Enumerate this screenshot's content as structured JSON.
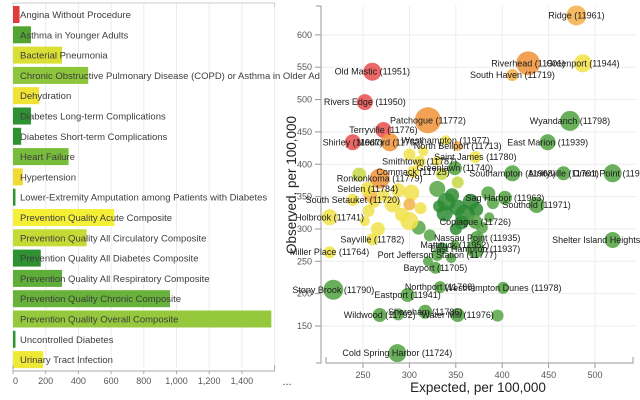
{
  "palette": {
    "red": "#e85353",
    "orange": "#f0953e",
    "light_orange": "#f4b14c",
    "yellow": "#f1e24b",
    "yellow_green": "#c6d845",
    "green": "#55a546",
    "dark_green": "#2e8b34"
  },
  "chart_data": [
    {
      "type": "bar",
      "title": "",
      "xlabel": "",
      "ylabel": "",
      "x_tick_values": [
        0,
        200,
        400,
        600,
        800,
        1000,
        1200,
        1400
      ],
      "x_tick_labels": [
        "0",
        "200",
        "400",
        "600",
        "800",
        "1,000",
        "1,200",
        "1,400"
      ],
      "x_max": 1600,
      "overflow_indicator": "...",
      "rows": [
        {
          "label": "Angina Without Procedure",
          "value": 40,
          "color": "#e03c3c"
        },
        {
          "label": "Asthma in Younger Adults",
          "value": 110,
          "color": "#53a433"
        },
        {
          "label": "Bacterial Pneumonia",
          "value": 300,
          "color": "#d9e033"
        },
        {
          "label": "Chronic Obstructive Pulmonary Disease (COPD) or Asthma in Older Ad",
          "value": 460,
          "color": "#8dc63b"
        },
        {
          "label": "Dehydration",
          "value": 160,
          "color": "#f0e335"
        },
        {
          "label": "Diabetes Long-term Complications",
          "value": 110,
          "color": "#2e9232"
        },
        {
          "label": "Diabetes Short-term Complications",
          "value": 50,
          "color": "#2e9232"
        },
        {
          "label": "Heart Failure",
          "value": 340,
          "color": "#78bc3c"
        },
        {
          "label": "Hypertension",
          "value": 60,
          "color": "#f2da36"
        },
        {
          "label": "Lower-Extremity Amputation among Patients with Diabetes",
          "value": 15,
          "color": "#2e9232"
        },
        {
          "label": "Prevention Quality Acute Composite",
          "value": 620,
          "color": "#f5ef36"
        },
        {
          "label": "Prevention Quality All Circulatory Composite",
          "value": 450,
          "color": "#c5da35"
        },
        {
          "label": "Prevention Quality All Diabetes Composite",
          "value": 170,
          "color": "#2e9232"
        },
        {
          "label": "Prevention Quality All Respiratory Composite",
          "value": 300,
          "color": "#5fae3a"
        },
        {
          "label": "Prevention Quality Chronic Composite",
          "value": 960,
          "color": "#67b23a"
        },
        {
          "label": "Prevention Quality Overall Composite",
          "value": 1580,
          "color": "#95c83c"
        },
        {
          "label": "Uncontrolled Diabetes",
          "value": 15,
          "color": "#2e9232"
        },
        {
          "label": "Urinary Tract Infection",
          "value": 185,
          "color": "#eee836"
        }
      ]
    },
    {
      "type": "scatter",
      "title": "",
      "xlabel": "Expected, per 100,000",
      "ylabel": "Observed, per 100,000",
      "x_ticks": [
        250,
        300,
        350,
        400,
        450,
        500
      ],
      "y_ticks": [
        150,
        200,
        250,
        300,
        350,
        400,
        450,
        500,
        550,
        600
      ],
      "x_range": [
        210,
        545
      ],
      "y_range": [
        95,
        645
      ],
      "grid": true,
      "points": [
        {
          "name": "Ridge",
          "zip": "11961",
          "expected": 480,
          "observed": 630,
          "r": 10,
          "color": "light_orange"
        },
        {
          "name": "Greenport",
          "zip": "11944",
          "expected": 487,
          "observed": 556,
          "r": 9,
          "color": "yellow"
        },
        {
          "name": "Riverhead",
          "zip": "11901",
          "expected": 428,
          "observed": 556,
          "r": 12,
          "color": "orange"
        },
        {
          "name": "South Haven",
          "zip": "11719",
          "expected": 411,
          "observed": 538,
          "r": 6,
          "color": "light_orange"
        },
        {
          "name": "Old Mastic",
          "zip": "11951",
          "expected": 260,
          "observed": 543,
          "r": 9,
          "color": "red"
        },
        {
          "name": "Rivers Edge",
          "zip": "11950",
          "expected": 252,
          "observed": 496,
          "r": 8,
          "color": "red"
        },
        {
          "name": "Patchogue",
          "zip": "11772",
          "expected": 320,
          "observed": 468,
          "r": 13,
          "color": "orange"
        },
        {
          "name": "Terryville",
          "zip": "11776",
          "expected": 272,
          "observed": 453,
          "r": 8,
          "color": "red"
        },
        {
          "name": "Wyandanch",
          "zip": "11798",
          "expected": 473,
          "observed": 467,
          "r": 10,
          "color": "green"
        },
        {
          "name": "Shirley",
          "zip": "11967",
          "expected": 239,
          "observed": 434,
          "r": 8,
          "color": "red"
        },
        {
          "name": "Medford",
          "zip": "11763",
          "expected": 279,
          "observed": 434,
          "r": 9,
          "color": "orange"
        },
        {
          "name": "Westhampton",
          "zip": "11977",
          "expected": 339,
          "observed": 437,
          "r": 5,
          "color": "yellow"
        },
        {
          "name": "North Bellport",
          "zip": "11713",
          "expected": 352,
          "observed": 428,
          "r": 5,
          "color": "light_orange"
        },
        {
          "name": "East Marion",
          "zip": "11939",
          "expected": 449,
          "observed": 434,
          "r": 8,
          "color": "green"
        },
        {
          "name": "Saint James",
          "zip": "11780",
          "expected": 371,
          "observed": 411,
          "r": 6,
          "color": "yellow"
        },
        {
          "name": "Smithtown",
          "zip": "11787",
          "expected": 311,
          "observed": 404,
          "r": 6,
          "color": "yellow"
        },
        {
          "name": "Ronkonkoma",
          "zip": "11779",
          "expected": 268,
          "observed": 378,
          "r": 10,
          "color": "orange"
        },
        {
          "name": "Commack",
          "zip": "11725",
          "expected": 304,
          "observed": 388,
          "r": 6,
          "color": "yellow"
        },
        {
          "name": "Greenlawn",
          "zip": "11740",
          "expected": 349,
          "observed": 394,
          "r": 7,
          "color": "green"
        },
        {
          "name": "Southampton",
          "zip": "11968",
          "expected": 411,
          "observed": 386,
          "r": 8,
          "color": "green"
        },
        {
          "name": "Amityville",
          "zip": "11701",
          "expected": 466,
          "observed": 386,
          "r": 7,
          "color": "green"
        },
        {
          "name": "Orient Point",
          "zip": "11957",
          "expected": 519,
          "observed": 386,
          "r": 9,
          "color": "green"
        },
        {
          "name": "Selden",
          "zip": "11784",
          "expected": 255,
          "observed": 362,
          "r": 7,
          "color": "yellow"
        },
        {
          "name": "South Setauket",
          "zip": "11720",
          "expected": 239,
          "observed": 345,
          "r": 6,
          "color": "yellow"
        },
        {
          "name": "Holbrook",
          "zip": "11741",
          "expected": 214,
          "observed": 318,
          "r": 8,
          "color": "yellow"
        },
        {
          "name": "Southold",
          "zip": "11971",
          "expected": 437,
          "observed": 337,
          "r": 8,
          "color": "green"
        },
        {
          "name": "Sag Harbor",
          "zip": "11963",
          "expected": 403,
          "observed": 348,
          "r": 7,
          "color": "green"
        },
        {
          "name": "Sayville",
          "zip": "11782",
          "expected": 260,
          "observed": 284,
          "r": 6,
          "color": "yellow"
        },
        {
          "name": "Copiague",
          "zip": "11726",
          "expected": 371,
          "observed": 311,
          "r": 7,
          "color": "green"
        },
        {
          "name": "Shelter Island Heights",
          "zip": "11965",
          "expected": 519,
          "observed": 283,
          "r": 8,
          "color": "green"
        },
        {
          "name": "Nassau Point",
          "zip": "11935",
          "expected": 373,
          "observed": 286,
          "r": 7,
          "color": "green"
        },
        {
          "name": "East Hampton",
          "zip": "11937",
          "expected": 371,
          "observed": 269,
          "r": 9,
          "color": "green"
        },
        {
          "name": "Mattituck",
          "zip": "11952",
          "expected": 349,
          "observed": 275,
          "r": 5,
          "color": "green"
        },
        {
          "name": "Port Jefferson Station",
          "zip": "11777",
          "expected": 330,
          "observed": 260,
          "r": 6,
          "color": "green"
        },
        {
          "name": "Bayport",
          "zip": "11705",
          "expected": 328,
          "observed": 240,
          "r": 6,
          "color": "green"
        },
        {
          "name": "Miller Place",
          "zip": "11764",
          "expected": 214,
          "observed": 264,
          "r": 6,
          "color": "yellow"
        },
        {
          "name": "Northport",
          "zip": "11768",
          "expected": 333,
          "observed": 210,
          "r": 6,
          "color": "green"
        },
        {
          "name": "Eastport",
          "zip": "11941",
          "expected": 298,
          "observed": 198,
          "r": 7,
          "color": "green"
        },
        {
          "name": "Westhampton Dunes",
          "zip": "11978",
          "expected": 401,
          "observed": 209,
          "r": 6,
          "color": "green"
        },
        {
          "name": "Stony Brook",
          "zip": "11790",
          "expected": 218,
          "observed": 206,
          "r": 10,
          "color": "green"
        },
        {
          "name": "Wildwood",
          "zip": "11792",
          "expected": 268,
          "observed": 167,
          "r": 7,
          "color": "green"
        },
        {
          "name": "Shoreham",
          "zip": "11786",
          "expected": 317,
          "observed": 172,
          "r": 7,
          "color": "green"
        },
        {
          "name": "Water Mill",
          "zip": "11976",
          "expected": 352,
          "observed": 167,
          "r": 7,
          "color": "green"
        },
        {
          "name": "Cold Spring Harbor",
          "zip": "11724",
          "expected": 287,
          "observed": 108,
          "r": 9,
          "color": "green"
        }
      ],
      "background_points": [
        [
          340,
          342,
          9,
          "dark_green"
        ],
        [
          352,
          333,
          8,
          "dark_green"
        ],
        [
          360,
          322,
          10,
          "dark_green"
        ],
        [
          346,
          352,
          7,
          "dark_green"
        ],
        [
          366,
          342,
          8,
          "dark_green"
        ],
        [
          372,
          330,
          7,
          "dark_green"
        ],
        [
          356,
          310,
          7,
          "dark_green"
        ],
        [
          338,
          324,
          8,
          "dark_green"
        ],
        [
          350,
          300,
          6,
          "dark_green"
        ],
        [
          332,
          335,
          6,
          "dark_green"
        ],
        [
          335,
          270,
          6,
          "dark_green"
        ],
        [
          385,
          355,
          7,
          "green"
        ],
        [
          390,
          340,
          6,
          "green"
        ],
        [
          330,
          362,
          8,
          "green"
        ],
        [
          378,
          302,
          6,
          "green"
        ],
        [
          386,
          318,
          5,
          "green"
        ],
        [
          322,
          290,
          6,
          "green"
        ],
        [
          310,
          302,
          7,
          "green"
        ],
        [
          288,
          168,
          6,
          "green"
        ],
        [
          395,
          166,
          6,
          "green"
        ],
        [
          320,
          250,
          5,
          "green"
        ],
        [
          345,
          255,
          5,
          "green"
        ],
        [
          282,
          338,
          8,
          "yellow"
        ],
        [
          292,
          322,
          7,
          "yellow"
        ],
        [
          300,
          312,
          9,
          "yellow"
        ],
        [
          266,
          300,
          7,
          "yellow"
        ],
        [
          256,
          328,
          6,
          "yellow"
        ],
        [
          302,
          356,
          8,
          "yellow"
        ],
        [
          312,
          332,
          6,
          "yellow"
        ],
        [
          252,
          312,
          5,
          "yellow"
        ],
        [
          272,
          352,
          6,
          "yellow"
        ],
        [
          288,
          360,
          7,
          "yellow"
        ],
        [
          262,
          342,
          6,
          "yellow"
        ],
        [
          300,
          415,
          6,
          "yellow"
        ],
        [
          315,
          420,
          5,
          "yellow"
        ],
        [
          330,
          405,
          5,
          "yellow"
        ],
        [
          258,
          352,
          7,
          "light_orange"
        ],
        [
          300,
          338,
          6,
          "light_orange"
        ],
        [
          246,
          384,
          7,
          "yellow_green"
        ],
        [
          335,
          385,
          6,
          "yellow_green"
        ],
        [
          352,
          372,
          6,
          "yellow_green"
        ]
      ]
    }
  ]
}
